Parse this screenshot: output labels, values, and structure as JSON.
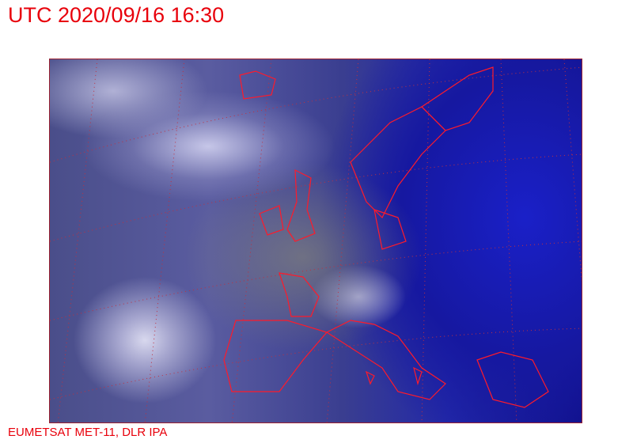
{
  "header": {
    "title": "UTC 2020/09/16 16:30"
  },
  "map": {
    "description_type": "satellite-image",
    "coastline_color": "#ff1a2a",
    "grid_color": "#c03040"
  },
  "footer": {
    "credit": "EUMETSAT MET-11, DLR IPA"
  }
}
